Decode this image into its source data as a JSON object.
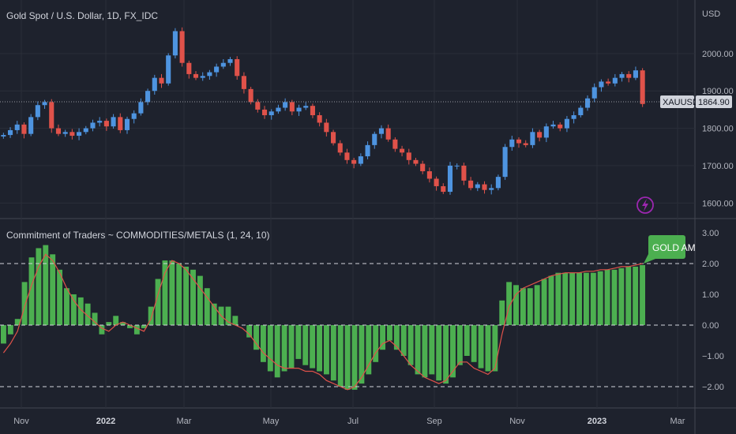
{
  "colors": {
    "background": "#1e222d",
    "grid": "#2a2e39",
    "axis_text": "#b2b5be",
    "candle_up": "#4e94e0",
    "candle_down": "#e0524a",
    "histogram": "#4caf50",
    "signal_line": "#e0524a",
    "label_green": "#4caf50",
    "price_label_bg": "#d1d4dc"
  },
  "price_pane": {
    "title": "Gold Spot / U.S. Dollar, 1D, FX_IDC",
    "currency_label": "USD",
    "y_ticks": [
      "2000.00",
      "1900.00",
      "1800.00",
      "1700.00",
      "1600.00"
    ],
    "symbol_label": "XAUUSD",
    "last_price": "1864.90",
    "icon": "lightning-bolt-icon"
  },
  "indicator_pane": {
    "title": "Commitment of Traders ~ COMMODITIES/METALS (1, 24, 10)",
    "y_ticks": [
      "3.00",
      "2.00",
      "1.00",
      "0.00",
      "−1.00",
      "−2.00"
    ],
    "tag_label": "GOLD AM"
  },
  "x_axis": {
    "labels": [
      "Nov",
      "2022",
      "Mar",
      "May",
      "Jul",
      "Sep",
      "Nov",
      "2023",
      "Mar"
    ]
  },
  "chart_data": [
    {
      "type": "line",
      "series": [
        {
          "values": [
            1782,
            1795,
            1810,
            1785,
            1830,
            1862,
            1870,
            1800,
            1785,
            1790,
            1780,
            1790,
            1800,
            1815,
            1820,
            1805,
            1830,
            1795,
            1825,
            1840,
            1870,
            1900,
            1935,
            1920,
            1995,
            2060,
            1975,
            1945,
            1935,
            1940,
            1950,
            1965,
            1975,
            1985,
            1940,
            1905,
            1870,
            1850,
            1835,
            1845,
            1855,
            1870,
            1845,
            1855,
            1860,
            1835,
            1815,
            1790,
            1760,
            1735,
            1715,
            1705,
            1725,
            1755,
            1785,
            1800,
            1770,
            1745,
            1735,
            1715,
            1705,
            1685,
            1665,
            1645,
            1630,
            1700,
            1700,
            1660,
            1640,
            1650,
            1635,
            1640,
            1670,
            1750,
            1770,
            1760,
            1755,
            1790,
            1775,
            1805,
            1810,
            1800,
            1825,
            1835,
            1855,
            1880,
            1910,
            1925,
            1920,
            1935,
            1945,
            1935,
            1955,
            1865
          ]
        }
      ],
      "ylim": [
        1590,
        2080
      ]
    },
    {
      "type": "bar",
      "series": [
        {
          "name": "histogram",
          "values": [
            -0.6,
            -0.3,
            0.2,
            1.4,
            2.2,
            2.5,
            2.6,
            2.3,
            1.8,
            1.2,
            1.0,
            0.9,
            0.7,
            0.4,
            -0.3,
            0.1,
            0.3,
            0.1,
            -0.1,
            -0.3,
            -0.1,
            0.6,
            1.5,
            2.1,
            2.1,
            2.0,
            1.9,
            1.8,
            1.6,
            1.2,
            0.7,
            0.6,
            0.6,
            0.3,
            0.0,
            -0.4,
            -0.8,
            -1.2,
            -1.5,
            -1.7,
            -1.5,
            -1.4,
            -1.1,
            -1.3,
            -1.4,
            -1.5,
            -1.6,
            -1.8,
            -2.0,
            -2.1,
            -2.1,
            -1.9,
            -1.6,
            -1.2,
            -0.8,
            -0.5,
            -0.8,
            -1.0,
            -1.3,
            -1.6,
            -1.7,
            -1.6,
            -1.8,
            -1.9,
            -1.7,
            -1.3,
            -1.0,
            -1.2,
            -1.4,
            -1.5,
            -1.5,
            0.8,
            1.4,
            1.3,
            1.2,
            1.2,
            1.3,
            1.5,
            1.6,
            1.7,
            1.7,
            1.7,
            1.7,
            1.7,
            1.7,
            1.75,
            1.8,
            1.8,
            1.85,
            1.9,
            1.9,
            1.95
          ]
        },
        {
          "name": "signal",
          "values": [
            -0.9,
            -0.6,
            -0.2,
            0.6,
            1.3,
            1.9,
            2.3,
            2.1,
            1.7,
            1.2,
            0.8,
            0.5,
            0.3,
            0.1,
            -0.1,
            -0.2,
            0.0,
            0.1,
            0.0,
            -0.1,
            -0.2,
            0.2,
            1.0,
            1.7,
            2.1,
            2.0,
            1.8,
            1.5,
            1.2,
            0.9,
            0.6,
            0.3,
            0.1,
            0.0,
            -0.1,
            -0.3,
            -0.6,
            -0.9,
            -1.1,
            -1.3,
            -1.4,
            -1.4,
            -1.4,
            -1.5,
            -1.5,
            -1.6,
            -1.8,
            -1.9,
            -2.0,
            -2.1,
            -2.0,
            -1.7,
            -1.3,
            -0.9,
            -0.6,
            -0.5,
            -0.7,
            -1.0,
            -1.3,
            -1.5,
            -1.7,
            -1.8,
            -1.9,
            -1.8,
            -1.5,
            -1.2,
            -1.2,
            -1.4,
            -1.5,
            -1.6,
            -1.4,
            -0.3,
            0.6,
            1.0,
            1.2,
            1.3,
            1.4,
            1.5,
            1.6,
            1.65,
            1.7,
            1.7,
            1.7,
            1.75,
            1.75,
            1.8,
            1.8,
            1.85,
            1.9,
            1.9,
            1.95,
            2.0
          ]
        }
      ],
      "ylim": [
        -2.5,
        3.3
      ]
    }
  ]
}
